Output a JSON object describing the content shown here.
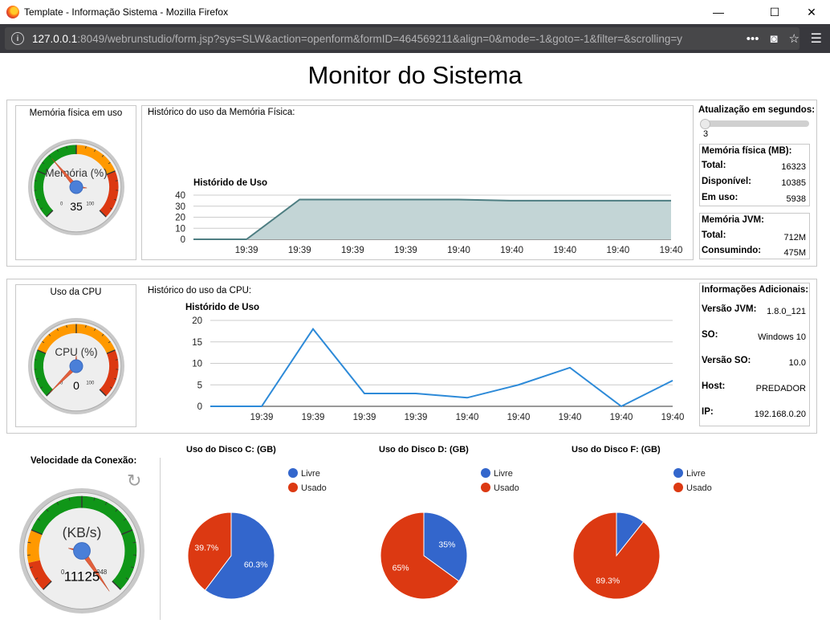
{
  "window": {
    "title": "Template - Informação Sistema - Mozilla Firefox",
    "minimize": "—",
    "maximize": "☐",
    "close": "✕"
  },
  "navbar": {
    "url_host": "127.0.0.1",
    "url_rest": ":8049/webrunstudio/form.jsp?sys=SLW&action=openform&formID=464569211&align=0&mode=-1&goto=-1&filter=&scrolling=y",
    "more": "•••",
    "pocket": "◙",
    "bookmark": "☆",
    "menu": "☰"
  },
  "page": {
    "title": "Monitor do Sistema"
  },
  "memory_gauge": {
    "label": "Memória física em uso",
    "gauge_title": "Memória (%)",
    "value": 35,
    "min_label": "0",
    "max_label": "100",
    "min": 0,
    "max": 100
  },
  "memory_history": {
    "label": "Histórico do uso da Memória Física:",
    "chart_data": {
      "type": "area",
      "title": "Histórido de Uso",
      "categories": [
        "",
        "19:39",
        "19:39",
        "19:39",
        "19:39",
        "19:40",
        "19:40",
        "19:40",
        "19:40",
        "19:40"
      ],
      "values": [
        0,
        0,
        36,
        36,
        36,
        36,
        35,
        35,
        35,
        35
      ],
      "ylim": [
        0,
        40
      ],
      "yticks": [
        "0",
        "10",
        "20",
        "30",
        "40"
      ],
      "color": "#4e7e82",
      "fill": "#c3d5d6",
      "grid": true
    }
  },
  "refresh": {
    "title": "Atualização em segundos:",
    "value": "3",
    "slider_level": 0
  },
  "memory_physical": {
    "title": "Memória física (MB):",
    "rows": [
      {
        "key": "Total:",
        "value": "16323"
      },
      {
        "key": "Disponível:",
        "value": "10385"
      },
      {
        "key": "Em uso:",
        "value": "5938"
      }
    ]
  },
  "memory_jvm": {
    "title": "Memória JVM:",
    "rows": [
      {
        "key": "Total:",
        "value": "712M"
      },
      {
        "key": "Consumindo:",
        "value": "475M"
      }
    ]
  },
  "cpu_gauge": {
    "label": "Uso da CPU",
    "gauge_title": "CPU (%)",
    "value": 0,
    "min_label": "0",
    "max_label": "100",
    "min": 0,
    "max": 100
  },
  "cpu_history": {
    "label": "Histórico do uso da CPU:",
    "chart_data": {
      "type": "line",
      "title": "Histórido de Uso",
      "categories": [
        "",
        "19:39",
        "19:39",
        "19:39",
        "19:39",
        "19:40",
        "19:40",
        "19:40",
        "19:40",
        "19:40"
      ],
      "values": [
        0,
        0,
        18,
        3,
        3,
        2,
        5,
        9,
        0,
        6
      ],
      "ylim": [
        0,
        20
      ],
      "yticks": [
        "0",
        "5",
        "10",
        "15",
        "20"
      ],
      "color": "#2d8ad8",
      "grid": true
    }
  },
  "additional": {
    "title": "Informações Adicionais:",
    "rows": [
      {
        "key": "Versão JVM:",
        "value": "1.8.0_121"
      },
      {
        "key": "SO:",
        "value": "Windows 10"
      },
      {
        "key": "Versão SO:",
        "value": "10.0"
      },
      {
        "key": "Host:",
        "value": "PREDADOR"
      },
      {
        "key": "IP:",
        "value": "192.168.0.20"
      }
    ]
  },
  "speed_gauge": {
    "label": "Velocidade da Conexão:",
    "gauge_title": "(KB/s)",
    "value": 11125,
    "display_value": "11125",
    "min_label": "0",
    "max_label": "2048",
    "min": 0,
    "max": 2048,
    "refresh_icon": "↻"
  },
  "disks": [
    {
      "title": "Uso do Disco C: (GB)",
      "legend": [
        "Livre",
        "Usado"
      ],
      "chart_data": {
        "type": "pie",
        "labels": [
          "Livre",
          "Usado"
        ],
        "values": [
          60.3,
          39.7
        ],
        "value_labels": [
          "60.3%",
          "39.7%"
        ],
        "colors": [
          "#3366cc",
          "#dc3912"
        ]
      }
    },
    {
      "title": "Uso do Disco D: (GB)",
      "legend": [
        "Livre",
        "Usado"
      ],
      "chart_data": {
        "type": "pie",
        "labels": [
          "Livre",
          "Usado"
        ],
        "values": [
          35,
          65
        ],
        "value_labels": [
          "35%",
          "65%"
        ],
        "colors": [
          "#3366cc",
          "#dc3912"
        ]
      }
    },
    {
      "title": "Uso do Disco F: (GB)",
      "legend": [
        "Livre",
        "Usado"
      ],
      "chart_data": {
        "type": "pie",
        "labels": [
          "Livre",
          "Usado"
        ],
        "values": [
          10.7,
          89.3
        ],
        "value_labels": [
          "",
          "89.3%"
        ],
        "colors": [
          "#3366cc",
          "#dc3912"
        ]
      }
    }
  ]
}
